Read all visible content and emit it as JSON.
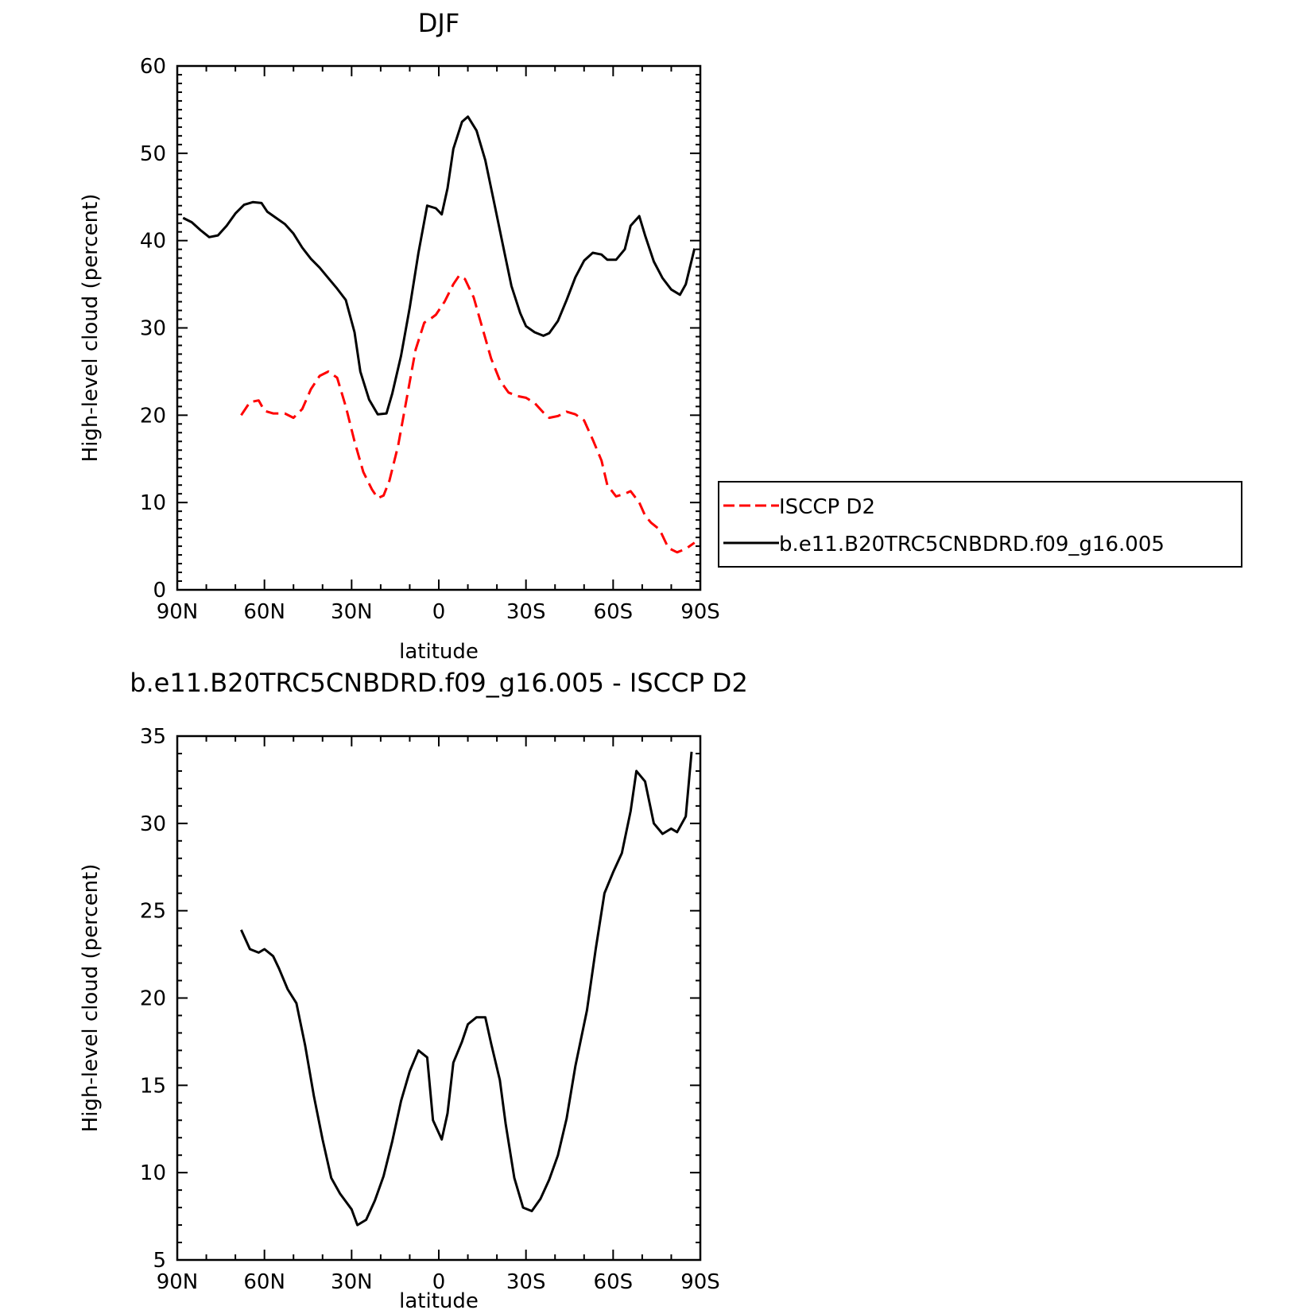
{
  "chart_data": [
    {
      "type": "line",
      "title": "DJF",
      "xlabel": "latitude",
      "ylabel": "High-level cloud (percent)",
      "xlim": [
        -90,
        90
      ],
      "ylim": [
        0,
        60
      ],
      "x_ticks": [
        {
          "value": -90,
          "label": "90N"
        },
        {
          "value": -60,
          "label": "60N"
        },
        {
          "value": -30,
          "label": "30N"
        },
        {
          "value": 0,
          "label": "0"
        },
        {
          "value": 30,
          "label": "30S"
        },
        {
          "value": 60,
          "label": "60S"
        },
        {
          "value": 90,
          "label": "90S"
        }
      ],
      "y_ticks": [
        0,
        10,
        20,
        30,
        40,
        50,
        60
      ],
      "legend": "right",
      "series": [
        {
          "name": "ISCCP D2",
          "color": "#ff0000",
          "dash": "dashed",
          "points": [
            [
              -68,
              20.0
            ],
            [
              -65,
              21.5
            ],
            [
              -62,
              21.7
            ],
            [
              -60,
              20.5
            ],
            [
              -57,
              20.2
            ],
            [
              -53,
              20.2
            ],
            [
              -50,
              19.7
            ],
            [
              -47,
              20.7
            ],
            [
              -44,
              23.0
            ],
            [
              -41,
              24.5
            ],
            [
              -38,
              25.0
            ],
            [
              -35,
              24.3
            ],
            [
              -32,
              21.0
            ],
            [
              -29,
              17.0
            ],
            [
              -26,
              13.5
            ],
            [
              -23,
              11.5
            ],
            [
              -21,
              10.5
            ],
            [
              -19,
              10.8
            ],
            [
              -17,
              12.5
            ],
            [
              -14,
              16.5
            ],
            [
              -11,
              22.0
            ],
            [
              -8,
              27.5
            ],
            [
              -5,
              30.6
            ],
            [
              -3,
              31.0
            ],
            [
              -1,
              31.5
            ],
            [
              2,
              33.0
            ],
            [
              5,
              35.0
            ],
            [
              7,
              36.0
            ],
            [
              9,
              35.6
            ],
            [
              12,
              33.5
            ],
            [
              15,
              30.0
            ],
            [
              18,
              26.5
            ],
            [
              21,
              24.0
            ],
            [
              24,
              22.6
            ],
            [
              27,
              22.2
            ],
            [
              30,
              22.0
            ],
            [
              33,
              21.4
            ],
            [
              36,
              20.3
            ],
            [
              38,
              19.7
            ],
            [
              41,
              19.9
            ],
            [
              44,
              20.4
            ],
            [
              47,
              20.1
            ],
            [
              50,
              19.4
            ],
            [
              53,
              17.2
            ],
            [
              56,
              14.8
            ],
            [
              58,
              12.0
            ],
            [
              61,
              10.7
            ],
            [
              64,
              11.0
            ],
            [
              66,
              11.3
            ],
            [
              69,
              10.0
            ],
            [
              71,
              8.5
            ],
            [
              73,
              7.7
            ],
            [
              76,
              6.9
            ],
            [
              79,
              4.8
            ],
            [
              82,
              4.3
            ],
            [
              85,
              4.7
            ],
            [
              88,
              5.4
            ]
          ]
        },
        {
          "name": "b.e11.B20TRC5CNBDRD.f09_g16.005",
          "color": "#000000",
          "dash": "solid",
          "points": [
            [
              -88,
              42.6
            ],
            [
              -85,
              42.1
            ],
            [
              -82,
              41.2
            ],
            [
              -79,
              40.4
            ],
            [
              -76,
              40.6
            ],
            [
              -73,
              41.7
            ],
            [
              -70,
              43.1
            ],
            [
              -67,
              44.1
            ],
            [
              -64,
              44.4
            ],
            [
              -61,
              44.3
            ],
            [
              -59,
              43.3
            ],
            [
              -56,
              42.6
            ],
            [
              -53,
              41.9
            ],
            [
              -50,
              40.8
            ],
            [
              -47,
              39.2
            ],
            [
              -44,
              37.9
            ],
            [
              -41,
              36.9
            ],
            [
              -38,
              35.7
            ],
            [
              -35,
              34.5
            ],
            [
              -32,
              33.2
            ],
            [
              -29,
              29.5
            ],
            [
              -27,
              25.0
            ],
            [
              -24,
              21.8
            ],
            [
              -21,
              20.1
            ],
            [
              -18,
              20.2
            ],
            [
              -16,
              22.5
            ],
            [
              -13,
              26.8
            ],
            [
              -10,
              32.3
            ],
            [
              -7,
              38.6
            ],
            [
              -4,
              44.0
            ],
            [
              -1,
              43.7
            ],
            [
              1,
              43.0
            ],
            [
              3,
              46.0
            ],
            [
              5,
              50.5
            ],
            [
              8,
              53.6
            ],
            [
              10,
              54.2
            ],
            [
              13,
              52.6
            ],
            [
              16,
              49.2
            ],
            [
              19,
              44.4
            ],
            [
              22,
              39.6
            ],
            [
              25,
              34.8
            ],
            [
              28,
              31.7
            ],
            [
              30,
              30.2
            ],
            [
              33,
              29.5
            ],
            [
              36,
              29.1
            ],
            [
              38,
              29.4
            ],
            [
              41,
              30.8
            ],
            [
              44,
              33.2
            ],
            [
              47,
              35.8
            ],
            [
              50,
              37.7
            ],
            [
              53,
              38.6
            ],
            [
              56,
              38.4
            ],
            [
              58,
              37.8
            ],
            [
              61,
              37.8
            ],
            [
              64,
              39.0
            ],
            [
              66,
              41.7
            ],
            [
              69,
              42.8
            ],
            [
              71,
              40.6
            ],
            [
              74,
              37.6
            ],
            [
              77,
              35.7
            ],
            [
              80,
              34.4
            ],
            [
              83,
              33.8
            ],
            [
              85,
              35.0
            ],
            [
              88,
              39.1
            ]
          ]
        }
      ]
    },
    {
      "type": "line",
      "title": "b.e11.B20TRC5CNBDRD.f09_g16.005 - ISCCP D2",
      "xlabel": "latitude",
      "ylabel": "High-level cloud (percent)",
      "xlim": [
        -90,
        90
      ],
      "ylim": [
        5,
        35
      ],
      "x_ticks": [
        {
          "value": -90,
          "label": "90N"
        },
        {
          "value": -60,
          "label": "60N"
        },
        {
          "value": -30,
          "label": "30N"
        },
        {
          "value": 0,
          "label": "0"
        },
        {
          "value": 30,
          "label": "30S"
        },
        {
          "value": 60,
          "label": "60S"
        },
        {
          "value": 90,
          "label": "90S"
        }
      ],
      "y_ticks": [
        5,
        10,
        15,
        20,
        25,
        30,
        35
      ],
      "series": [
        {
          "color": "#000000",
          "dash": "solid",
          "points": [
            [
              -68,
              23.9
            ],
            [
              -65,
              22.8
            ],
            [
              -62,
              22.6
            ],
            [
              -60,
              22.8
            ],
            [
              -57,
              22.4
            ],
            [
              -55,
              21.7
            ],
            [
              -52,
              20.5
            ],
            [
              -49,
              19.7
            ],
            [
              -46,
              17.3
            ],
            [
              -43,
              14.4
            ],
            [
              -40,
              11.9
            ],
            [
              -37,
              9.7
            ],
            [
              -34,
              8.8
            ],
            [
              -30,
              7.9
            ],
            [
              -28,
              7.0
            ],
            [
              -25,
              7.3
            ],
            [
              -22,
              8.4
            ],
            [
              -19,
              9.8
            ],
            [
              -16,
              11.8
            ],
            [
              -13,
              14.1
            ],
            [
              -10,
              15.8
            ],
            [
              -7,
              17.0
            ],
            [
              -4,
              16.6
            ],
            [
              -2,
              13.0
            ],
            [
              1,
              11.9
            ],
            [
              3,
              13.4
            ],
            [
              5,
              16.3
            ],
            [
              8,
              17.5
            ],
            [
              10,
              18.5
            ],
            [
              13,
              18.9
            ],
            [
              16,
              18.9
            ],
            [
              18,
              17.4
            ],
            [
              21,
              15.3
            ],
            [
              23,
              12.8
            ],
            [
              26,
              9.7
            ],
            [
              29,
              8.0
            ],
            [
              32,
              7.8
            ],
            [
              35,
              8.5
            ],
            [
              38,
              9.6
            ],
            [
              41,
              11.0
            ],
            [
              44,
              13.1
            ],
            [
              47,
              16.1
            ],
            [
              51,
              19.3
            ],
            [
              54,
              22.8
            ],
            [
              57,
              26.0
            ],
            [
              60,
              27.2
            ],
            [
              63,
              28.3
            ],
            [
              66,
              30.7
            ],
            [
              68,
              33.0
            ],
            [
              71,
              32.4
            ],
            [
              74,
              30.0
            ],
            [
              77,
              29.4
            ],
            [
              80,
              29.7
            ],
            [
              82,
              29.5
            ],
            [
              85,
              30.4
            ],
            [
              87,
              34.1
            ]
          ]
        }
      ]
    }
  ]
}
